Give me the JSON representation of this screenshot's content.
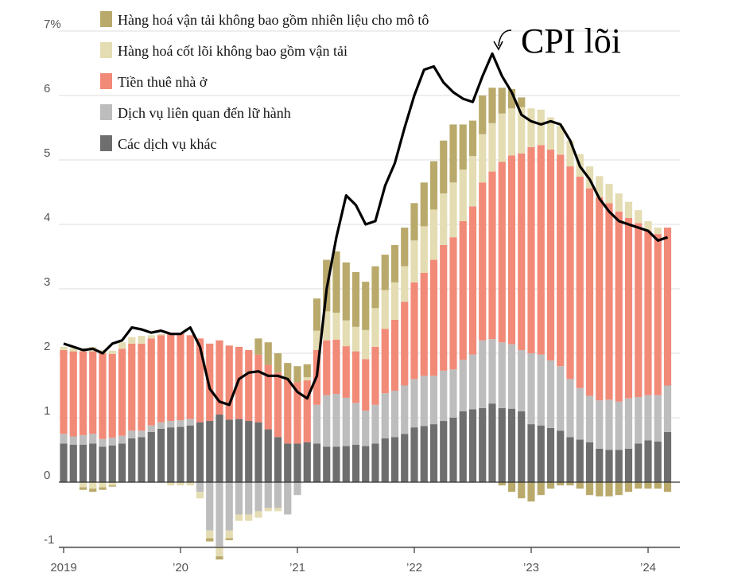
{
  "chart_data": {
    "type": "bar",
    "stacked": true,
    "grid": true,
    "legend_position": "top-left",
    "ylim": [
      -1.1,
      7.2
    ],
    "y_ticks": [
      {
        "value": 7,
        "label": "7%"
      },
      {
        "value": 6,
        "label": "6"
      },
      {
        "value": 5,
        "label": "5"
      },
      {
        "value": 4,
        "label": "4"
      },
      {
        "value": 3,
        "label": "3"
      },
      {
        "value": 2,
        "label": "2"
      },
      {
        "value": 1,
        "label": "1"
      },
      {
        "value": 0,
        "label": "0"
      },
      {
        "value": -1,
        "label": "-1"
      }
    ],
    "x_ticks": [
      {
        "index": 0,
        "label": "2019"
      },
      {
        "index": 12,
        "label": "’20"
      },
      {
        "index": 24,
        "label": "’21"
      },
      {
        "index": 36,
        "label": "’22"
      },
      {
        "index": 48,
        "label": "’23"
      },
      {
        "index": 60,
        "label": "’24"
      }
    ],
    "categories": [
      "2019-01",
      "2019-02",
      "2019-03",
      "2019-04",
      "2019-05",
      "2019-06",
      "2019-07",
      "2019-08",
      "2019-09",
      "2019-10",
      "2019-11",
      "2019-12",
      "2020-01",
      "2020-02",
      "2020-03",
      "2020-04",
      "2020-05",
      "2020-06",
      "2020-07",
      "2020-08",
      "2020-09",
      "2020-10",
      "2020-11",
      "2020-12",
      "2021-01",
      "2021-02",
      "2021-03",
      "2021-04",
      "2021-05",
      "2021-06",
      "2021-07",
      "2021-08",
      "2021-09",
      "2021-10",
      "2021-11",
      "2021-12",
      "2022-01",
      "2022-02",
      "2022-03",
      "2022-04",
      "2022-05",
      "2022-06",
      "2022-07",
      "2022-08",
      "2022-09",
      "2022-10",
      "2022-11",
      "2022-12",
      "2023-01",
      "2023-02",
      "2023-03",
      "2023-04",
      "2023-05",
      "2023-06",
      "2023-07",
      "2023-08",
      "2023-09",
      "2023-10",
      "2023-11",
      "2023-12",
      "2024-01",
      "2024-02",
      "2024-03"
    ],
    "series": [
      {
        "name": "Các dịch vụ khác",
        "color": "#6e6e6e",
        "values": [
          0.6,
          0.58,
          0.58,
          0.6,
          0.55,
          0.57,
          0.6,
          0.68,
          0.7,
          0.78,
          0.83,
          0.85,
          0.86,
          0.88,
          0.93,
          0.95,
          1.05,
          0.97,
          0.98,
          0.95,
          0.93,
          0.82,
          0.7,
          0.6,
          0.6,
          0.62,
          0.6,
          0.55,
          0.55,
          0.56,
          0.58,
          0.56,
          0.6,
          0.68,
          0.7,
          0.75,
          0.85,
          0.87,
          0.9,
          0.95,
          1.0,
          1.1,
          1.13,
          1.15,
          1.22,
          1.15,
          1.14,
          1.1,
          0.9,
          0.88,
          0.84,
          0.8,
          0.7,
          0.66,
          0.62,
          0.52,
          0.5,
          0.5,
          0.52,
          0.6,
          0.65,
          0.63,
          0.78
        ]
      },
      {
        "name": "Dịch vụ liên quan đến lữ hành",
        "color": "#bdbdbd",
        "values": [
          0.15,
          0.13,
          0.15,
          0.15,
          0.12,
          0.12,
          0.12,
          0.12,
          0.1,
          0.1,
          0.1,
          0.1,
          0.1,
          0.1,
          -0.15,
          -0.75,
          -1.0,
          -0.75,
          -0.5,
          -0.5,
          -0.45,
          -0.4,
          -0.4,
          -0.5,
          -0.2,
          0.0,
          0.6,
          0.8,
          0.82,
          0.75,
          0.65,
          0.55,
          0.6,
          0.7,
          0.72,
          0.75,
          0.75,
          0.78,
          0.75,
          0.78,
          0.75,
          0.8,
          0.85,
          1.05,
          1.0,
          1.02,
          1.0,
          0.95,
          1.1,
          1.1,
          1.05,
          1.0,
          0.9,
          0.8,
          0.72,
          0.75,
          0.78,
          0.75,
          0.78,
          0.72,
          0.7,
          0.72,
          0.72
        ]
      },
      {
        "name": "Tiền thuê nhà ở",
        "color": "#f28a78",
        "values": [
          1.3,
          1.32,
          1.3,
          1.28,
          1.33,
          1.3,
          1.35,
          1.35,
          1.35,
          1.35,
          1.35,
          1.35,
          1.35,
          1.3,
          1.3,
          1.2,
          1.15,
          1.15,
          1.12,
          1.1,
          1.05,
          1.0,
          1.0,
          1.0,
          0.95,
          0.96,
          0.85,
          0.85,
          0.84,
          0.8,
          0.8,
          0.8,
          0.9,
          1.0,
          1.1,
          1.3,
          1.5,
          1.6,
          1.8,
          1.95,
          2.05,
          2.15,
          2.3,
          2.45,
          2.6,
          2.8,
          2.93,
          3.05,
          3.2,
          3.25,
          3.27,
          3.28,
          3.3,
          3.28,
          3.22,
          3.15,
          3.05,
          2.95,
          2.8,
          2.7,
          2.55,
          2.5,
          2.45
        ]
      },
      {
        "name": "Hàng hoá cốt lõi không bao gồm vận tải",
        "color": "#e4dcb2",
        "values": [
          0.05,
          0.05,
          0.05,
          0.07,
          0.05,
          0.05,
          0.1,
          0.1,
          0.12,
          0.05,
          0.02,
          0.0,
          0.0,
          0.0,
          0.0,
          0.0,
          0.0,
          0.0,
          0.0,
          0.0,
          0.0,
          0.0,
          0.0,
          0.0,
          0.0,
          0.05,
          0.3,
          0.45,
          0.42,
          0.4,
          0.38,
          0.45,
          0.6,
          0.6,
          0.58,
          0.55,
          0.65,
          0.72,
          0.78,
          0.8,
          0.85,
          0.8,
          0.78,
          0.75,
          0.75,
          0.75,
          0.73,
          0.72,
          0.6,
          0.55,
          0.5,
          0.45,
          0.4,
          0.35,
          0.34,
          0.33,
          0.3,
          0.28,
          0.25,
          0.2,
          0.15,
          0.1,
          0.0
        ]
      },
      {
        "name": "Hàng hoá vận tải không bao gồm nhiên liệu cho mô tô",
        "color": "#b9aa6c",
        "values": [
          0.0,
          0.0,
          0.0,
          0.0,
          0.0,
          0.0,
          0.0,
          0.0,
          0.0,
          0.0,
          0.0,
          0.0,
          0.0,
          0.0,
          0.0,
          0.0,
          0.0,
          0.0,
          0.0,
          0.0,
          0.25,
          0.35,
          0.3,
          0.25,
          0.25,
          0.2,
          0.5,
          0.8,
          0.95,
          0.9,
          0.85,
          0.75,
          0.65,
          0.55,
          0.58,
          0.6,
          0.58,
          0.68,
          0.75,
          0.82,
          0.9,
          0.7,
          0.55,
          0.6,
          0.55,
          0.4,
          0.3,
          0.15,
          0.0,
          0.0,
          0.0,
          0.0,
          0.0,
          0.0,
          0.0,
          0.0,
          0.0,
          0.0,
          0.0,
          0.0,
          0.0,
          0.0,
          0.0
        ]
      }
    ],
    "negative_offsets": {
      "note_free": true,
      "Hàng hoá cốt lõi không bao gồm vận tải": [
        0,
        0,
        -0.08,
        -0.1,
        -0.08,
        -0.05,
        0,
        0,
        0,
        0,
        0,
        -0.05,
        -0.05,
        -0.05,
        -0.1,
        -0.12,
        -0.15,
        -0.12,
        -0.1,
        -0.1,
        -0.1,
        -0.05,
        -0.05,
        0,
        0,
        0,
        0,
        0,
        0,
        0,
        0,
        0,
        0,
        0,
        0,
        0,
        0,
        0,
        0,
        0,
        0,
        0,
        0,
        0,
        0,
        0,
        0,
        0,
        0,
        0,
        0,
        0,
        0,
        0,
        0,
        0,
        0,
        0,
        0,
        0,
        0,
        0,
        0
      ],
      "Hàng hoá vận tải không bao gồm nhiên liệu cho mô tô": [
        0,
        0,
        -0.04,
        -0.05,
        -0.04,
        -0.02,
        0,
        0,
        0,
        0,
        0,
        0,
        0,
        0,
        0,
        -0.05,
        -0.05,
        -0.03,
        0,
        0,
        0,
        0,
        0,
        0,
        0,
        0,
        0,
        0,
        0,
        0,
        0,
        0,
        0,
        0,
        0,
        0,
        0,
        0,
        0,
        0,
        0,
        0,
        0,
        0,
        0,
        -0.05,
        -0.15,
        -0.25,
        -0.3,
        -0.2,
        -0.1,
        -0.05,
        -0.05,
        -0.1,
        -0.2,
        -0.22,
        -0.22,
        -0.2,
        -0.15,
        -0.1,
        -0.1,
        -0.1,
        -0.15
      ]
    },
    "line": {
      "name": "CPI lõi",
      "color": "#000000",
      "values": [
        2.15,
        2.1,
        2.05,
        2.07,
        2.0,
        2.15,
        2.2,
        2.4,
        2.37,
        2.32,
        2.35,
        2.3,
        2.3,
        2.4,
        2.1,
        1.45,
        1.25,
        1.2,
        1.6,
        1.7,
        1.72,
        1.65,
        1.65,
        1.6,
        1.4,
        1.3,
        1.65,
        3.0,
        3.8,
        4.45,
        4.3,
        4.0,
        4.05,
        4.6,
        4.95,
        5.5,
        6.0,
        6.4,
        6.45,
        6.2,
        6.05,
        5.95,
        5.9,
        6.3,
        6.65,
        6.3,
        6.05,
        5.7,
        5.6,
        5.55,
        5.6,
        5.55,
        5.3,
        4.9,
        4.7,
        4.4,
        4.2,
        4.05,
        4.0,
        3.95,
        3.9,
        3.75,
        3.8
      ]
    },
    "annotation": {
      "text": "CPI lõi",
      "index": 44
    },
    "legend": [
      "Hàng hoá vận tải không bao gồm nhiên liệu cho mô tô",
      "Hàng hoá cốt lõi không bao gồm vận tải",
      "Tiền thuê nhà ở",
      "Dịch vụ liên quan đến lữ hành",
      "Các dịch vụ khác"
    ],
    "legend_colors": [
      "#b9aa6c",
      "#e4dcb2",
      "#f28a78",
      "#bdbdbd",
      "#6e6e6e"
    ]
  }
}
